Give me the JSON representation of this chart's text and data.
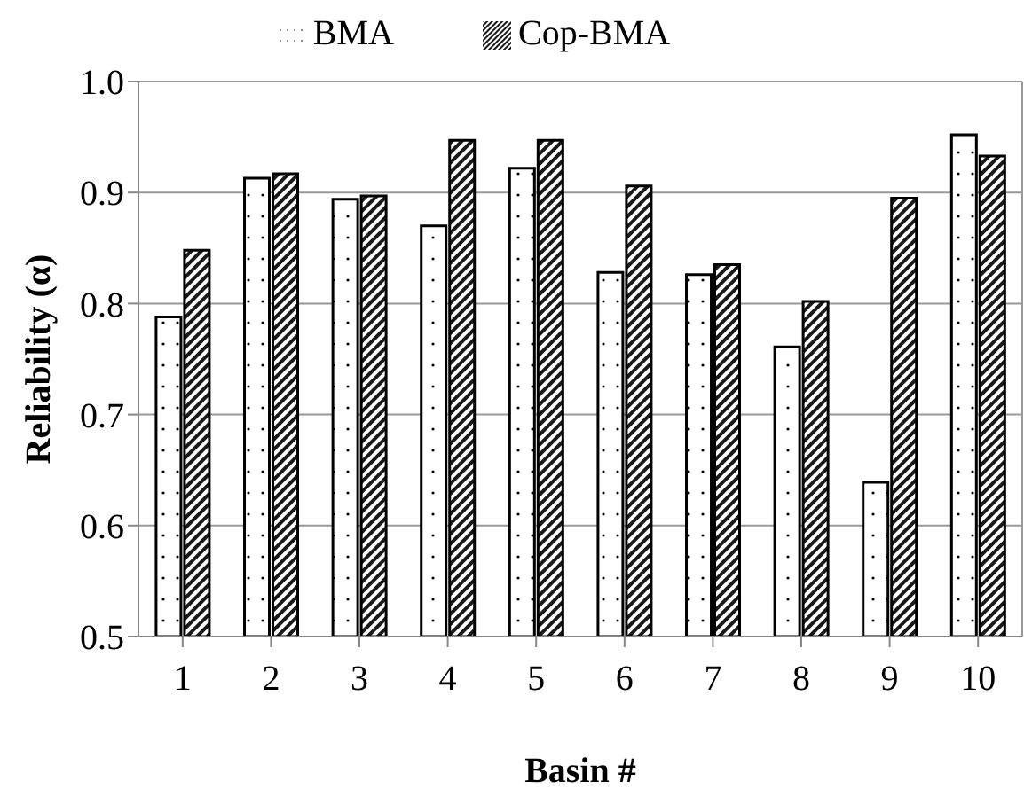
{
  "chart_data": {
    "type": "bar",
    "xlabel": "Basin #",
    "ylabel": "Reliability (α)",
    "categories": [
      "1",
      "2",
      "3",
      "4",
      "5",
      "6",
      "7",
      "8",
      "9",
      "10"
    ],
    "series": [
      {
        "name": "BMA",
        "color": "#000000",
        "values": [
          0.788,
          0.913,
          0.894,
          0.87,
          0.922,
          0.828,
          0.826,
          0.761,
          0.639,
          0.952
        ]
      },
      {
        "name": "Cop-BMA",
        "color": "#000000",
        "values": [
          0.848,
          0.917,
          0.897,
          0.947,
          0.947,
          0.906,
          0.835,
          0.802,
          0.895,
          0.933
        ]
      }
    ],
    "ylim": [
      0.5,
      1.0
    ],
    "yticks": [
      {
        "value": 0.5,
        "label": "0.5"
      },
      {
        "value": 0.6,
        "label": "0.6"
      },
      {
        "value": 0.7,
        "label": "0.7"
      },
      {
        "value": 0.8,
        "label": "0.8"
      },
      {
        "value": 0.9,
        "label": "0.9"
      },
      {
        "value": 1.0,
        "label": "1.0"
      }
    ],
    "grid": "y",
    "legend": "top"
  }
}
